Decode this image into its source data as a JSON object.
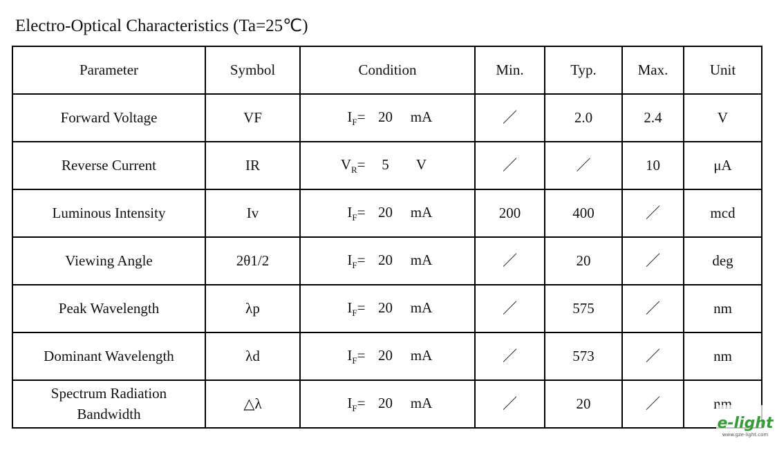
{
  "title": "Electro-Optical Characteristics (Ta=25℃)",
  "table": {
    "header": [
      "Parameter",
      "Symbol",
      "Condition",
      "Min.",
      "Typ.",
      "Max.",
      "Unit"
    ],
    "rows": [
      {
        "parameter": "Forward  Voltage",
        "symbol": "VF",
        "condition": {
          "var": "I",
          "sub": "F",
          "eq": "=",
          "value": "20",
          "unit": "mA"
        },
        "min": "／",
        "typ": "2.0",
        "max": "2.4",
        "unit": "V"
      },
      {
        "parameter": "Reverse  Current",
        "symbol": "IR",
        "condition": {
          "var": "V",
          "sub": "R",
          "eq": "=",
          "value": "5",
          "unit": "V"
        },
        "min": "／",
        "typ": "／",
        "max": "10",
        "unit": "μA"
      },
      {
        "parameter": "Luminous Intensity",
        "symbol": "Iv",
        "condition": {
          "var": "I",
          "sub": "F",
          "eq": "=",
          "value": "20",
          "unit": "mA"
        },
        "min": "200",
        "typ": "400",
        "max": "／",
        "unit": "mcd"
      },
      {
        "parameter": "Viewing Angle",
        "symbol": "2θ1/2",
        "condition": {
          "var": "I",
          "sub": "F",
          "eq": "=",
          "value": "20",
          "unit": "mA"
        },
        "min": "／",
        "typ": "20",
        "max": "／",
        "unit": "deg"
      },
      {
        "parameter": "Peak Wavelength",
        "symbol": "λp",
        "condition": {
          "var": "I",
          "sub": "F",
          "eq": "=",
          "value": "20",
          "unit": "mA"
        },
        "min": "／",
        "typ": "575",
        "max": "／",
        "unit": "nm"
      },
      {
        "parameter": "Dominant Wavelength",
        "symbol": "λd",
        "condition": {
          "var": "I",
          "sub": "F",
          "eq": "=",
          "value": "20",
          "unit": "mA"
        },
        "min": "／",
        "typ": "573",
        "max": "／",
        "unit": "nm"
      },
      {
        "parameter": "Spectrum Radiation Bandwidth",
        "symbol": "△λ",
        "condition": {
          "var": "I",
          "sub": "F",
          "eq": "=",
          "value": "20",
          "unit": "mA"
        },
        "min": "／",
        "typ": "20",
        "max": "／",
        "unit": "nm"
      }
    ]
  },
  "watermark": {
    "logo": "e-light",
    "url": "www.gze-light.com"
  }
}
